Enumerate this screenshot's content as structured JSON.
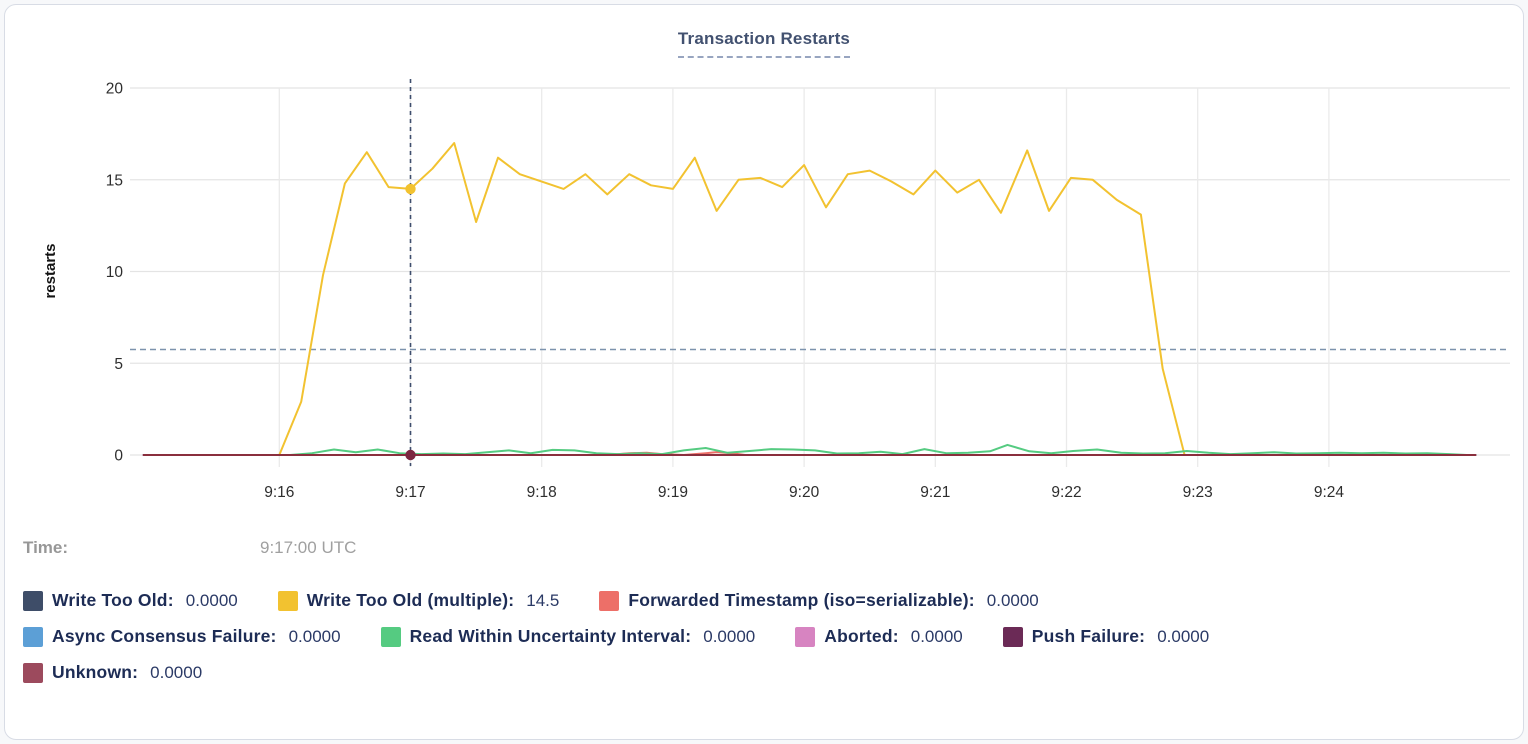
{
  "title": "Transaction Restarts",
  "time_row": {
    "label": "Time:",
    "value": "9:17:00 UTC"
  },
  "chart_data": {
    "type": "line",
    "title": "Transaction Restarts",
    "xlabel": "",
    "ylabel": "restarts",
    "ylim": [
      0,
      20
    ],
    "yticks": [
      0,
      5,
      10,
      15,
      20
    ],
    "grid": true,
    "legend_position": "bottom",
    "x_unit": "seconds since 9:16:00",
    "xlim_sec": [
      -62,
      563
    ],
    "xticks": [
      {
        "sec": 0,
        "label": "9:16"
      },
      {
        "sec": 60,
        "label": "9:17"
      },
      {
        "sec": 120,
        "label": "9:18"
      },
      {
        "sec": 180,
        "label": "9:19"
      },
      {
        "sec": 240,
        "label": "9:20"
      },
      {
        "sec": 300,
        "label": "9:21"
      },
      {
        "sec": 360,
        "label": "9:22"
      },
      {
        "sec": 420,
        "label": "9:23"
      },
      {
        "sec": 480,
        "label": "9:24"
      }
    ],
    "hover": {
      "time_sec": 60,
      "time_label": "9:17:00 UTC",
      "avg_line_value": 5.75,
      "dots": [
        {
          "series": "Write Too Old (multiple)",
          "value": 14.5,
          "color": "#f2c230"
        },
        {
          "series": "Unknown",
          "value": 0,
          "color": "#7c2740"
        }
      ]
    },
    "series": [
      {
        "name": "Write Too Old",
        "color": "#3e4d68",
        "value_label": "0.0000",
        "points": [
          [
            -62,
            0
          ],
          [
            547,
            0
          ]
        ]
      },
      {
        "name": "Write Too Old (multiple)",
        "color": "#f2c230",
        "value_label": "14.5",
        "points": [
          [
            0,
            0
          ],
          [
            10,
            2.9
          ],
          [
            20,
            9.8
          ],
          [
            30,
            14.8
          ],
          [
            40,
            16.5
          ],
          [
            50,
            14.6
          ],
          [
            60,
            14.5
          ],
          [
            70,
            15.6
          ],
          [
            80,
            17.0
          ],
          [
            90,
            12.7
          ],
          [
            100,
            16.2
          ],
          [
            110,
            15.3
          ],
          [
            120,
            14.9
          ],
          [
            130,
            14.5
          ],
          [
            140,
            15.3
          ],
          [
            150,
            14.2
          ],
          [
            160,
            15.3
          ],
          [
            170,
            14.7
          ],
          [
            180,
            14.5
          ],
          [
            190,
            16.2
          ],
          [
            200,
            13.3
          ],
          [
            210,
            15.0
          ],
          [
            220,
            15.1
          ],
          [
            230,
            14.6
          ],
          [
            240,
            15.8
          ],
          [
            250,
            13.5
          ],
          [
            260,
            15.3
          ],
          [
            270,
            15.5
          ],
          [
            280,
            14.9
          ],
          [
            290,
            14.2
          ],
          [
            300,
            15.5
          ],
          [
            310,
            14.3
          ],
          [
            320,
            15.0
          ],
          [
            330,
            13.2
          ],
          [
            342,
            16.6
          ],
          [
            352,
            13.3
          ],
          [
            362,
            15.1
          ],
          [
            372,
            15.0
          ],
          [
            383,
            13.9
          ],
          [
            394,
            13.1
          ],
          [
            404,
            4.7
          ],
          [
            414,
            0
          ]
        ]
      },
      {
        "name": "Forwarded Timestamp (iso=serializable)",
        "color": "#ed6f68",
        "value_label": "0.0000",
        "points": [
          [
            -62,
            0
          ],
          [
            150,
            0
          ],
          [
            160,
            0.1
          ],
          [
            168,
            0.12
          ],
          [
            175,
            0.05
          ],
          [
            185,
            0
          ],
          [
            195,
            0.1
          ],
          [
            200,
            0.16
          ],
          [
            207,
            0.1
          ],
          [
            213,
            0
          ],
          [
            547,
            0
          ]
        ]
      },
      {
        "name": "Async Consensus Failure",
        "color": "#5c9fd6",
        "value_label": "0.0000",
        "points": [
          [
            -62,
            0
          ],
          [
            547,
            0
          ]
        ]
      },
      {
        "name": "Read Within Uncertainty Interval",
        "color": "#55cb81",
        "value_label": "0.0000",
        "points": [
          [
            5,
            0
          ],
          [
            15,
            0.1
          ],
          [
            25,
            0.3
          ],
          [
            35,
            0.15
          ],
          [
            45,
            0.3
          ],
          [
            55,
            0.1
          ],
          [
            65,
            0.05
          ],
          [
            75,
            0.08
          ],
          [
            85,
            0.05
          ],
          [
            95,
            0.15
          ],
          [
            105,
            0.25
          ],
          [
            115,
            0.1
          ],
          [
            125,
            0.28
          ],
          [
            135,
            0.25
          ],
          [
            145,
            0.1
          ],
          [
            155,
            0.05
          ],
          [
            165,
            0.1
          ],
          [
            175,
            0.05
          ],
          [
            185,
            0.25
          ],
          [
            195,
            0.38
          ],
          [
            205,
            0.12
          ],
          [
            215,
            0.22
          ],
          [
            225,
            0.32
          ],
          [
            235,
            0.3
          ],
          [
            245,
            0.25
          ],
          [
            255,
            0.08
          ],
          [
            265,
            0.1
          ],
          [
            275,
            0.18
          ],
          [
            285,
            0.05
          ],
          [
            295,
            0.32
          ],
          [
            305,
            0.1
          ],
          [
            315,
            0.12
          ],
          [
            325,
            0.2
          ],
          [
            333,
            0.55
          ],
          [
            343,
            0.2
          ],
          [
            353,
            0.1
          ],
          [
            363,
            0.22
          ],
          [
            374,
            0.3
          ],
          [
            385,
            0.12
          ],
          [
            395,
            0.08
          ],
          [
            405,
            0.1
          ],
          [
            415,
            0.22
          ],
          [
            425,
            0.12
          ],
          [
            435,
            0.05
          ],
          [
            445,
            0.1
          ],
          [
            455,
            0.15
          ],
          [
            465,
            0.08
          ],
          [
            475,
            0.1
          ],
          [
            485,
            0.12
          ],
          [
            495,
            0.1
          ],
          [
            505,
            0.12
          ],
          [
            515,
            0.08
          ],
          [
            525,
            0.1
          ],
          [
            535,
            0.05
          ],
          [
            543,
            0
          ]
        ]
      },
      {
        "name": "Aborted",
        "color": "#d784c1",
        "value_label": "0.0000",
        "points": [
          [
            -62,
            0
          ],
          [
            547,
            0
          ]
        ]
      },
      {
        "name": "Push Failure",
        "color": "#6b2a56",
        "value_label": "0.0000",
        "points": [
          [
            -62,
            0
          ],
          [
            547,
            0
          ]
        ]
      },
      {
        "name": "Unknown",
        "color": "#9c4a5d",
        "stroke": "#8a2f3d",
        "value_label": "0.0000",
        "points": [
          [
            -62,
            0
          ],
          [
            547,
            0
          ]
        ]
      }
    ]
  }
}
